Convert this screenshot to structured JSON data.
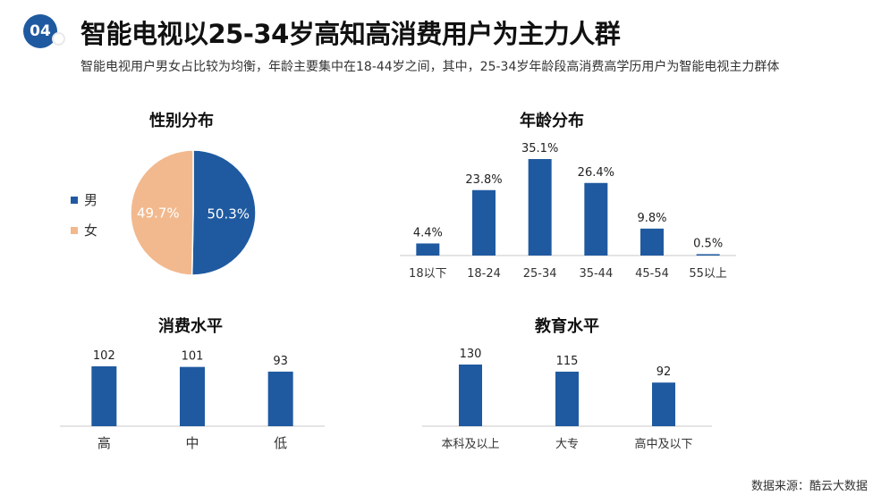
{
  "header": {
    "badge": "04",
    "title": "智能电视以25-34岁高知高消费用户为主力人群",
    "subtitle": "智能电视用户男女占比较为均衡，年龄主要集中在18-44岁之间，其中，25-34岁年龄段高消费高学历用户为智能电视主力群体"
  },
  "footer": {
    "source": "数据来源：酷云大数据"
  },
  "colors": {
    "bar": "#1f5aa0",
    "male": "#1f5aa0",
    "female": "#f2b98e",
    "badge": "#1f5aa0"
  },
  "chart_data": [
    {
      "id": "gender",
      "type": "pie",
      "title": "性别分布",
      "labels": [
        "男",
        "女"
      ],
      "values": [
        50.3,
        49.7
      ],
      "value_labels": [
        "50.3%",
        "49.7%"
      ],
      "colors": [
        "#1f5aa0",
        "#f2b98e"
      ],
      "legend": "left"
    },
    {
      "id": "age",
      "type": "bar",
      "title": "年龄分布",
      "categories": [
        "18以下",
        "18-24",
        "25-34",
        "35-44",
        "45-54",
        "55以上"
      ],
      "values": [
        4.4,
        23.8,
        35.1,
        26.4,
        9.8,
        0.5
      ],
      "value_labels": [
        "4.4%",
        "23.8%",
        "35.1%",
        "26.4%",
        "9.8%",
        "0.5%"
      ]
    },
    {
      "id": "consumption",
      "type": "bar",
      "title": "消费水平",
      "categories": [
        "高",
        "中",
        "低"
      ],
      "values": [
        102,
        101,
        93
      ],
      "value_labels": [
        "102",
        "101",
        "93"
      ]
    },
    {
      "id": "education",
      "type": "bar",
      "title": "教育水平",
      "categories": [
        "本科及以上",
        "大专",
        "高中及以下"
      ],
      "values": [
        130,
        115,
        92
      ],
      "value_labels": [
        "130",
        "115",
        "92"
      ]
    }
  ]
}
